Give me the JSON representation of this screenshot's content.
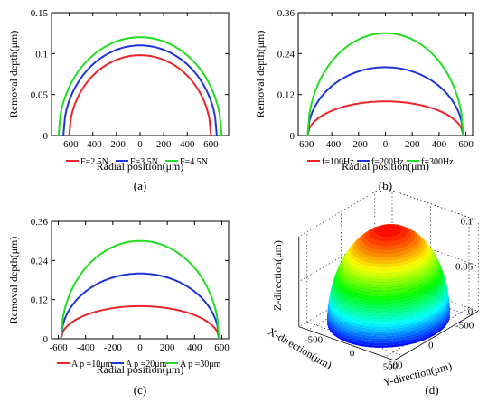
{
  "chart_data": [
    {
      "id": "a",
      "type": "line",
      "caption": "(a)",
      "xlabel": "Radial position(μm)",
      "ylabel": "Removal depth(μm)",
      "xlim": [
        -750,
        750
      ],
      "ylim": [
        0,
        0.15
      ],
      "xticks": [
        -600,
        -400,
        -200,
        0,
        200,
        400,
        600
      ],
      "xtick_labels": [
        "-600",
        "-400",
        "-200",
        "0",
        "200",
        "400",
        "600"
      ],
      "yticks": [
        0,
        0.05,
        0.1,
        0.15
      ],
      "ytick_labels": [
        "0",
        "0.05",
        "0.1",
        "0.15"
      ],
      "legend_position": "below",
      "series": [
        {
          "name": "F=2.5N",
          "color": "#e8262b",
          "radius": 600,
          "peak": 0.098
        },
        {
          "name": "F=3.5N",
          "color": "#1f35d6",
          "radius": 650,
          "peak": 0.11
        },
        {
          "name": "F=4.5N",
          "color": "#22dd22",
          "radius": 690,
          "peak": 0.12
        }
      ]
    },
    {
      "id": "b",
      "type": "line",
      "caption": "(b)",
      "xlabel": "Radial position(μm)",
      "ylabel": "Removal depth(μm)",
      "xlim": [
        -650,
        650
      ],
      "ylim": [
        0,
        0.36
      ],
      "xticks": [
        -600,
        -400,
        -200,
        0,
        200,
        400,
        600
      ],
      "xtick_labels": [
        "-600",
        "-400",
        "-200",
        "0",
        "200",
        "400",
        "600"
      ],
      "yticks": [
        0,
        0.12,
        0.24,
        0.36
      ],
      "ytick_labels": [
        "0",
        "0.12",
        "0.24",
        "0.36"
      ],
      "legend_position": "below",
      "series": [
        {
          "name": "f=100Hz",
          "color": "#e8262b",
          "radius": 580,
          "peak": 0.1
        },
        {
          "name": "f=200Hz",
          "color": "#1f35d6",
          "radius": 580,
          "peak": 0.2
        },
        {
          "name": "f=300Hz",
          "color": "#22dd22",
          "radius": 580,
          "peak": 0.3
        }
      ]
    },
    {
      "id": "c",
      "type": "line",
      "caption": "(c)",
      "xlabel": "Radial position(μm)",
      "ylabel": "Removal depth(μm)",
      "xlim": [
        -650,
        650
      ],
      "ylim": [
        0,
        0.36
      ],
      "xticks": [
        -600,
        -400,
        -200,
        0,
        200,
        400,
        600
      ],
      "xtick_labels": [
        "-600",
        "-400",
        "-200",
        "0",
        "200",
        "400",
        "600"
      ],
      "yticks": [
        0,
        0.12,
        0.24,
        0.36
      ],
      "ytick_labels": [
        "0",
        "0.12",
        "0.24",
        "0.36"
      ],
      "legend_position": "below",
      "series": [
        {
          "name": "A p =10μm",
          "color": "#e8262b",
          "radius": 580,
          "peak": 0.1
        },
        {
          "name": "A p =20μm",
          "color": "#1f35d6",
          "radius": 580,
          "peak": 0.2
        },
        {
          "name": "A p =30μm",
          "color": "#22dd22",
          "radius": 580,
          "peak": 0.3
        }
      ]
    },
    {
      "id": "d",
      "type": "surface",
      "caption": "(d)",
      "xlabel": "X-direction(μm)",
      "ylabel": "Y-direction(μm)",
      "zlabel": "Z-direction(μm)",
      "xticks": [
        "500",
        "0",
        "-500"
      ],
      "yticks": [
        "-500",
        "0",
        "500"
      ],
      "zticks": [
        "0",
        "0.05",
        "0.1"
      ],
      "zlim": [
        0,
        0.1
      ],
      "colormap": [
        "#0000ff",
        "#00ffff",
        "#00ff00",
        "#ffff00",
        "#ff0000"
      ]
    }
  ]
}
